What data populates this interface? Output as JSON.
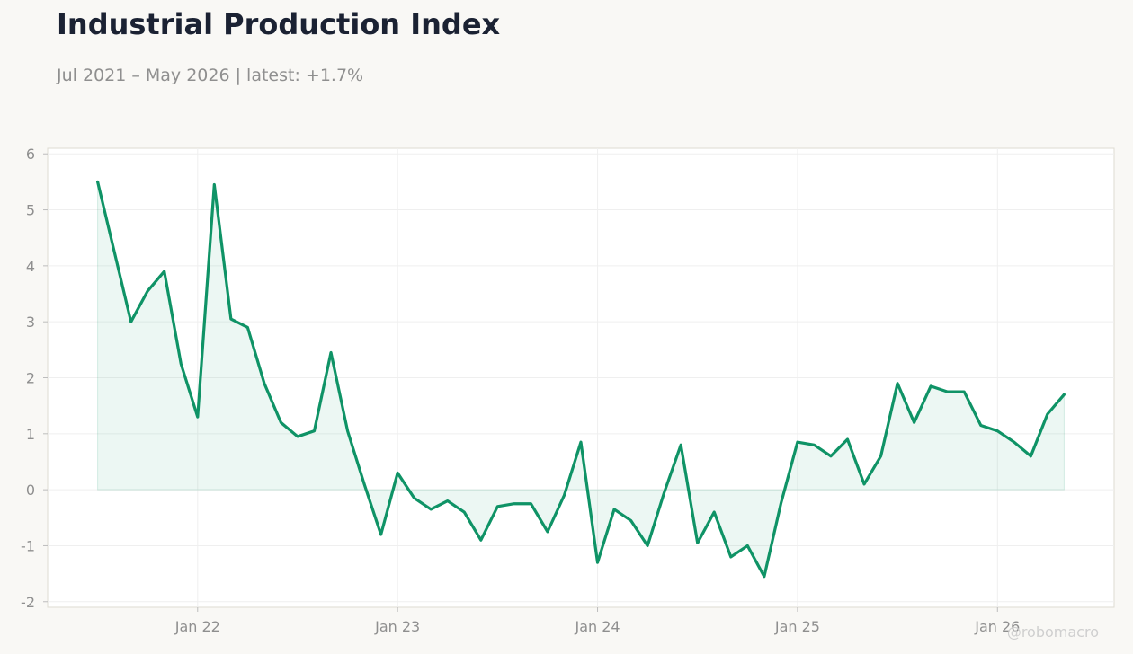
{
  "title": "Industrial Production Index",
  "subtitle": "Jul 2021 – May 2026 | latest: +1.7%",
  "watermark": "@robomacro",
  "colors": {
    "line": "#0f9366",
    "fill": "#0f9366",
    "background": "#f9f8f5",
    "plot_background": "#ffffff",
    "grid": "#efefef",
    "frame": "#dedbd2"
  },
  "chart_data": {
    "type": "area",
    "title": "Industrial Production Index",
    "subtitle": "Jul 2021 – May 2026 | latest: +1.7%",
    "xlabel": "",
    "ylabel": "",
    "ylim": [
      -2.1,
      6.1
    ],
    "xlim": [
      "2021-04",
      "2026-08"
    ],
    "yticks": [
      -2,
      -1,
      0,
      1,
      2,
      3,
      4,
      5,
      6
    ],
    "xticks": [
      {
        "date": "2022-01",
        "label": "Jan 22"
      },
      {
        "date": "2023-01",
        "label": "Jan 23"
      },
      {
        "date": "2024-01",
        "label": "Jan 24"
      },
      {
        "date": "2025-01",
        "label": "Jan 25"
      },
      {
        "date": "2026-01",
        "label": "Jan 26"
      }
    ],
    "grid": true,
    "legend": "none",
    "series": [
      {
        "x": [
          "2021-07",
          "2021-08",
          "2021-09",
          "2021-10",
          "2021-11",
          "2021-12",
          "2022-01",
          "2022-02",
          "2022-03",
          "2022-04",
          "2022-05",
          "2022-06",
          "2022-07",
          "2022-08",
          "2022-09",
          "2022-10",
          "2022-11",
          "2022-12",
          "2023-01",
          "2023-02",
          "2023-03",
          "2023-04",
          "2023-05",
          "2023-06",
          "2023-07",
          "2023-08",
          "2023-09",
          "2023-10",
          "2023-11",
          "2023-12",
          "2024-01",
          "2024-02",
          "2024-03",
          "2024-04",
          "2024-05",
          "2024-06",
          "2024-07",
          "2024-08",
          "2024-09",
          "2024-10",
          "2024-11",
          "2024-12",
          "2025-01",
          "2025-02",
          "2025-03",
          "2025-04",
          "2025-05",
          "2025-06",
          "2025-07",
          "2025-08",
          "2025-09",
          "2025-10",
          "2025-11",
          "2025-12",
          "2026-01",
          "2026-02",
          "2026-03",
          "2026-04",
          "2026-05"
        ],
        "values": [
          5.5,
          4.25,
          3.0,
          3.55,
          3.9,
          2.25,
          1.3,
          5.45,
          3.05,
          2.9,
          1.9,
          1.2,
          0.95,
          1.05,
          2.45,
          1.05,
          0.1,
          -0.8,
          0.3,
          -0.15,
          -0.35,
          -0.2,
          -0.4,
          -0.9,
          -0.3,
          -0.25,
          -0.25,
          -0.75,
          -0.1,
          0.85,
          -1.3,
          -0.35,
          -0.55,
          -1.0,
          -0.05,
          0.8,
          -0.95,
          -0.4,
          -1.2,
          -1.0,
          -1.55,
          -0.25,
          0.85,
          0.8,
          0.6,
          0.9,
          0.1,
          0.6,
          1.9,
          1.2,
          1.85,
          1.75,
          1.75,
          1.15,
          1.05,
          0.85,
          0.6,
          1.35,
          1.7
        ]
      }
    ]
  }
}
